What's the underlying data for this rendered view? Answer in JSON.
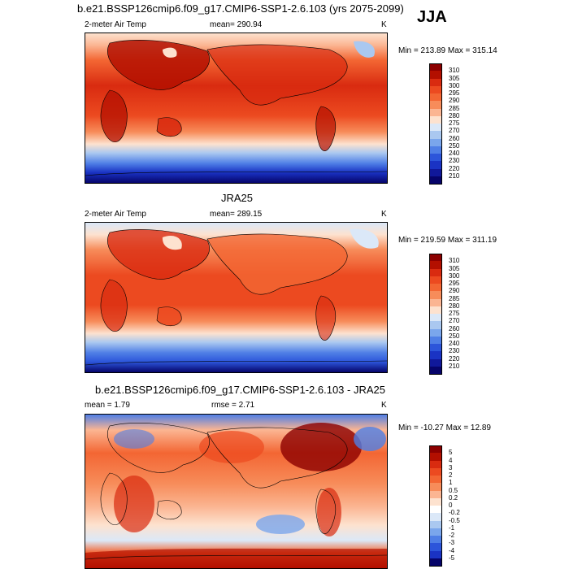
{
  "season": "JJA",
  "panels": [
    {
      "title": "b.e21.BSSP126cmip6.f09_g17.CMIP6-SSP1-2.6.103 (yrs 2075-2099)",
      "left_label": "2-meter Air Temp",
      "center_label": "mean= 290.94",
      "units": "K",
      "minmax": "Min = 213.89 Max = 315.14",
      "legend": {
        "levels": [
          "310",
          "305",
          "300",
          "295",
          "290",
          "285",
          "280",
          "275",
          "270",
          "260",
          "250",
          "240",
          "230",
          "220",
          "210"
        ],
        "colors": [
          "#8c0000",
          "#b30f00",
          "#d92b10",
          "#ec4a20",
          "#f36633",
          "#f78c5a",
          "#fbb592",
          "#fde2cf",
          "#dbe8f8",
          "#aac8f0",
          "#7aa6ec",
          "#4f7fe6",
          "#2c55da",
          "#1a33c4",
          "#10189a",
          "#06046a"
        ]
      }
    },
    {
      "title": "JRA25",
      "left_label": "2-meter Air Temp",
      "center_label": "mean= 289.15",
      "units": "K",
      "minmax": "Min = 219.59 Max = 311.19",
      "legend": {
        "levels": [
          "310",
          "305",
          "300",
          "295",
          "290",
          "285",
          "280",
          "275",
          "270",
          "260",
          "250",
          "240",
          "230",
          "220",
          "210"
        ],
        "colors": [
          "#8c0000",
          "#b30f00",
          "#d92b10",
          "#ec4a20",
          "#f36633",
          "#f78c5a",
          "#fbb592",
          "#fde2cf",
          "#dbe8f8",
          "#aac8f0",
          "#7aa6ec",
          "#4f7fe6",
          "#2c55da",
          "#1a33c4",
          "#10189a",
          "#06046a"
        ]
      }
    },
    {
      "title": "b.e21.BSSP126cmip6.f09_g17.CMIP6-SSP1-2.6.103 - JRA25",
      "left_label": "mean =   1.79",
      "center_label": "rmse =   2.71",
      "units": "K",
      "minmax": "Min = -10.27 Max =  12.89",
      "legend": {
        "levels": [
          "5",
          "4",
          "3",
          "2",
          "1",
          "0.5",
          "0.2",
          "0",
          "-0.2",
          "-0.5",
          "-1",
          "-2",
          "-3",
          "-4",
          "-5"
        ],
        "colors": [
          "#8c0000",
          "#b30f00",
          "#d92b10",
          "#ec4a20",
          "#f36633",
          "#f78c5a",
          "#fbb592",
          "#fde2cf",
          "#ffffff",
          "#dbe8f8",
          "#aac8f0",
          "#7aa6ec",
          "#4f7fe6",
          "#2c55da",
          "#1a33c4",
          "#06046a"
        ]
      }
    }
  ]
}
